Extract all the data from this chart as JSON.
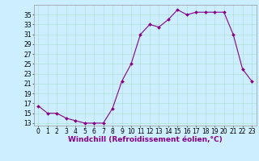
{
  "x": [
    0,
    1,
    2,
    3,
    4,
    5,
    6,
    7,
    8,
    9,
    10,
    11,
    12,
    13,
    14,
    15,
    16,
    17,
    18,
    19,
    20,
    21,
    22,
    23
  ],
  "y": [
    16.5,
    15.0,
    15.0,
    14.0,
    13.5,
    13.0,
    13.0,
    13.0,
    16.0,
    21.5,
    25.0,
    31.0,
    33.0,
    32.5,
    34.0,
    36.0,
    35.0,
    35.5,
    35.5,
    35.5,
    35.5,
    31.0,
    24.0,
    21.5
  ],
  "line_color": "#880088",
  "marker_color": "#880088",
  "bg_color": "#cceeff",
  "grid_color": "#aaddcc",
  "xlabel": "Windchill (Refroidissement éolien,°C)",
  "ylabel": "",
  "xlim": [
    -0.5,
    23.5
  ],
  "ylim": [
    12.5,
    37.0
  ],
  "yticks": [
    13,
    15,
    17,
    19,
    21,
    23,
    25,
    27,
    29,
    31,
    33,
    35
  ],
  "xticks": [
    0,
    1,
    2,
    3,
    4,
    5,
    6,
    7,
    8,
    9,
    10,
    11,
    12,
    13,
    14,
    15,
    16,
    17,
    18,
    19,
    20,
    21,
    22,
    23
  ],
  "xlabel_fontsize": 6.5,
  "tick_fontsize": 5.5
}
